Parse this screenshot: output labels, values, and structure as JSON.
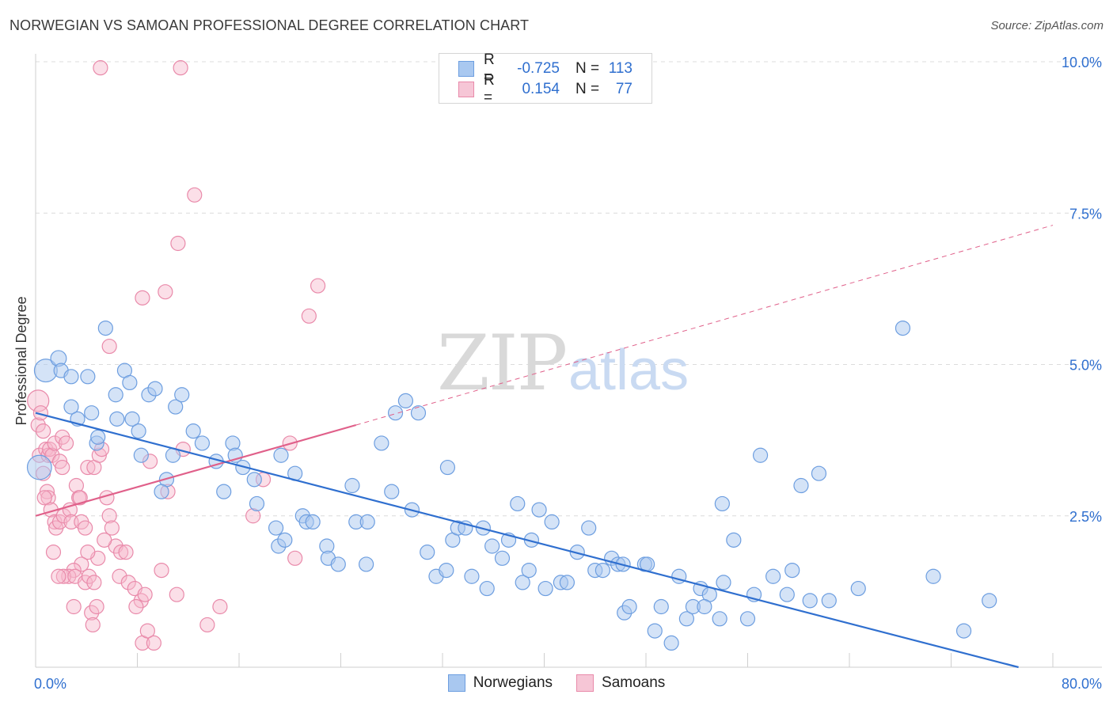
{
  "title": "NORWEGIAN VS SAMOAN PROFESSIONAL DEGREE CORRELATION CHART",
  "source": "Source: ZipAtlas.com",
  "watermark": {
    "zip": "ZIP",
    "atlas": "atlas"
  },
  "legend": {
    "rows": [
      {
        "r_label": "R =",
        "r_value": "-0.725",
        "n_label": "N =",
        "n_value": "113"
      },
      {
        "r_label": "R =",
        "r_value": "0.154",
        "n_label": "N =",
        "n_value": "77"
      }
    ]
  },
  "bottom_legend": [
    "Norwegians",
    "Samoans"
  ],
  "colors": {
    "blue_fill": "#a9c8f0",
    "blue_stroke": "#6d9ee0",
    "blue_line": "#2f6fcf",
    "pink_fill": "#f6b8cc",
    "pink_stroke": "#e98aaa",
    "pink_line": "#e0608a",
    "tick_text": "#2f6fcf"
  },
  "chart_data": {
    "type": "scatter",
    "title": "NORWEGIAN VS SAMOAN PROFESSIONAL DEGREE CORRELATION CHART",
    "xlabel": "",
    "ylabel": "Professional Degree",
    "xlim": [
      0,
      80
    ],
    "ylim": [
      0,
      10
    ],
    "x_tick_labels": [
      "0.0%",
      "80.0%"
    ],
    "y_ticks": [
      2.5,
      5.0,
      7.5,
      10.0
    ],
    "y_tick_labels": [
      "2.5%",
      "5.0%",
      "7.5%",
      "10.0%"
    ],
    "grid": true,
    "series": [
      {
        "name": "Norwegians",
        "r": -0.725,
        "n": 113,
        "trend": {
          "x": [
            0,
            77.3
          ],
          "y": [
            4.2,
            0.0
          ],
          "style": "solid"
        },
        "points": [
          [
            0.3,
            3.3,
            1.7
          ],
          [
            0.8,
            4.9,
            1.6
          ],
          [
            1.8,
            5.1,
            1.1
          ],
          [
            2.0,
            4.9,
            1
          ],
          [
            2.8,
            4.8,
            1
          ],
          [
            4.1,
            4.8,
            1
          ],
          [
            5.5,
            5.6,
            1
          ],
          [
            7.0,
            4.9,
            1
          ],
          [
            2.8,
            4.3,
            1
          ],
          [
            3.3,
            4.1,
            1
          ],
          [
            4.4,
            4.2,
            1
          ],
          [
            6.4,
            4.1,
            1
          ],
          [
            7.6,
            4.1,
            1
          ],
          [
            6.3,
            4.5,
            1
          ],
          [
            7.4,
            4.7,
            1
          ],
          [
            8.9,
            4.5,
            1
          ],
          [
            9.4,
            4.6,
            1
          ],
          [
            11.0,
            4.3,
            1
          ],
          [
            11.5,
            4.5,
            1
          ],
          [
            8.1,
            3.9,
            1
          ],
          [
            12.4,
            3.9,
            1
          ],
          [
            13.1,
            3.7,
            1
          ],
          [
            4.8,
            3.7,
            1
          ],
          [
            4.9,
            3.8,
            1
          ],
          [
            8.3,
            3.5,
            1
          ],
          [
            10.8,
            3.5,
            1
          ],
          [
            14.2,
            3.4,
            1
          ],
          [
            15.5,
            3.7,
            1
          ],
          [
            15.7,
            3.5,
            1
          ],
          [
            10.3,
            3.1,
            1
          ],
          [
            9.9,
            2.9,
            1
          ],
          [
            14.8,
            2.9,
            1
          ],
          [
            16.3,
            3.3,
            1
          ],
          [
            17.2,
            3.1,
            1
          ],
          [
            17.4,
            2.7,
            1
          ],
          [
            18.9,
            2.3,
            1
          ],
          [
            19.1,
            2.0,
            1
          ],
          [
            19.6,
            2.1,
            1
          ],
          [
            19.3,
            3.5,
            1
          ],
          [
            20.4,
            3.2,
            1
          ],
          [
            21.0,
            2.5,
            1
          ],
          [
            21.3,
            2.4,
            1
          ],
          [
            21.8,
            2.4,
            1
          ],
          [
            22.9,
            2.0,
            1
          ],
          [
            23.0,
            1.8,
            1
          ],
          [
            23.8,
            1.7,
            1
          ],
          [
            24.9,
            3.0,
            1
          ],
          [
            25.2,
            2.4,
            1
          ],
          [
            26.0,
            1.7,
            1
          ],
          [
            27.2,
            3.7,
            1
          ],
          [
            28.0,
            2.9,
            1
          ],
          [
            28.3,
            4.2,
            1
          ],
          [
            26.1,
            2.4,
            1
          ],
          [
            29.1,
            4.4,
            1
          ],
          [
            29.6,
            2.6,
            1
          ],
          [
            30.1,
            4.2,
            1
          ],
          [
            30.8,
            1.9,
            1
          ],
          [
            31.5,
            1.5,
            1
          ],
          [
            32.3,
            1.6,
            1
          ],
          [
            32.4,
            3.3,
            1
          ],
          [
            32.8,
            2.1,
            1
          ],
          [
            33.2,
            2.3,
            1
          ],
          [
            33.8,
            2.3,
            1
          ],
          [
            34.3,
            1.5,
            1
          ],
          [
            35.2,
            2.3,
            1
          ],
          [
            35.5,
            1.3,
            1
          ],
          [
            35.9,
            2.0,
            1
          ],
          [
            36.7,
            1.8,
            1
          ],
          [
            37.2,
            2.1,
            1
          ],
          [
            37.9,
            2.7,
            1
          ],
          [
            38.3,
            1.4,
            1
          ],
          [
            39.0,
            2.1,
            1
          ],
          [
            38.8,
            1.6,
            1
          ],
          [
            39.6,
            2.6,
            1
          ],
          [
            40.1,
            1.3,
            1
          ],
          [
            40.6,
            2.4,
            1
          ],
          [
            41.3,
            1.4,
            1
          ],
          [
            41.8,
            1.4,
            1
          ],
          [
            42.6,
            1.9,
            1
          ],
          [
            43.5,
            2.3,
            1
          ],
          [
            44.0,
            1.6,
            1
          ],
          [
            44.6,
            1.6,
            1
          ],
          [
            45.3,
            1.8,
            1
          ],
          [
            45.8,
            1.7,
            1
          ],
          [
            46.2,
            1.7,
            1
          ],
          [
            46.3,
            0.9,
            1
          ],
          [
            46.7,
            1.0,
            1
          ],
          [
            47.9,
            1.7,
            1
          ],
          [
            48.1,
            1.7,
            1
          ],
          [
            48.7,
            0.6,
            1
          ],
          [
            49.2,
            1.0,
            1
          ],
          [
            50.0,
            0.4,
            1
          ],
          [
            50.6,
            1.5,
            1
          ],
          [
            51.2,
            0.8,
            1
          ],
          [
            51.7,
            1.0,
            1
          ],
          [
            52.3,
            1.3,
            1
          ],
          [
            53.0,
            1.2,
            1
          ],
          [
            53.8,
            0.8,
            1
          ],
          [
            54.1,
            1.4,
            1
          ],
          [
            54.0,
            2.7,
            1
          ],
          [
            52.6,
            1.0,
            1
          ],
          [
            54.9,
            2.1,
            1
          ],
          [
            56.0,
            0.8,
            1
          ],
          [
            56.5,
            1.2,
            1
          ],
          [
            57.0,
            3.5,
            1
          ],
          [
            58.0,
            1.5,
            1
          ],
          [
            59.1,
            1.2,
            1
          ],
          [
            59.5,
            1.6,
            1
          ],
          [
            60.2,
            3.0,
            1
          ],
          [
            60.9,
            1.1,
            1
          ],
          [
            61.6,
            3.2,
            1
          ],
          [
            62.4,
            1.1,
            1
          ],
          [
            64.7,
            1.3,
            1
          ],
          [
            68.2,
            5.6,
            1
          ],
          [
            70.6,
            1.5,
            1
          ],
          [
            73.0,
            0.6,
            1
          ],
          [
            75.0,
            1.1,
            1
          ]
        ]
      },
      {
        "name": "Samoans",
        "r": 0.154,
        "n": 77,
        "trend_solid": {
          "x": [
            0,
            25.2
          ],
          "y": [
            2.5,
            4.0
          ]
        },
        "trend_dashed": {
          "x": [
            25.2,
            80
          ],
          "y": [
            4.0,
            7.3
          ]
        },
        "points": [
          [
            0.2,
            4.4,
            1.5
          ],
          [
            0.2,
            4.0,
            1
          ],
          [
            0.4,
            4.2,
            1
          ],
          [
            0.6,
            3.9,
            1
          ],
          [
            0.3,
            3.5,
            1
          ],
          [
            0.8,
            3.6,
            1
          ],
          [
            1.0,
            3.5,
            1
          ],
          [
            1.1,
            3.6,
            1
          ],
          [
            1.3,
            3.5,
            1
          ],
          [
            1.5,
            3.7,
            1
          ],
          [
            2.1,
            3.8,
            1
          ],
          [
            2.4,
            3.7,
            1
          ],
          [
            1.9,
            3.4,
            1
          ],
          [
            2.1,
            3.3,
            1
          ],
          [
            0.6,
            3.2,
            1
          ],
          [
            0.9,
            2.9,
            1
          ],
          [
            1.0,
            2.8,
            1
          ],
          [
            0.7,
            2.8,
            1
          ],
          [
            1.2,
            2.6,
            1
          ],
          [
            1.5,
            2.4,
            1
          ],
          [
            1.6,
            2.3,
            1
          ],
          [
            1.9,
            2.4,
            1
          ],
          [
            2.2,
            2.5,
            1
          ],
          [
            2.7,
            2.6,
            1
          ],
          [
            2.8,
            2.4,
            1
          ],
          [
            3.2,
            3.0,
            1
          ],
          [
            3.4,
            2.8,
            1
          ],
          [
            3.5,
            2.8,
            1
          ],
          [
            3.6,
            2.4,
            1
          ],
          [
            3.9,
            2.3,
            1
          ],
          [
            4.1,
            3.3,
            1
          ],
          [
            4.6,
            3.3,
            1
          ],
          [
            5.0,
            3.5,
            1
          ],
          [
            5.2,
            3.6,
            1
          ],
          [
            5.6,
            2.8,
            1
          ],
          [
            5.8,
            2.5,
            1
          ],
          [
            6.0,
            2.3,
            1
          ],
          [
            6.3,
            2.0,
            1
          ],
          [
            6.7,
            1.9,
            1
          ],
          [
            7.1,
            1.9,
            1
          ],
          [
            5.4,
            2.1,
            1
          ],
          [
            4.9,
            1.8,
            1
          ],
          [
            4.1,
            1.9,
            1
          ],
          [
            3.6,
            1.7,
            1
          ],
          [
            3.0,
            1.6,
            1
          ],
          [
            2.6,
            1.5,
            1
          ],
          [
            2.2,
            1.5,
            1
          ],
          [
            1.4,
            1.9,
            1
          ],
          [
            1.8,
            1.5,
            1
          ],
          [
            3.1,
            1.5,
            1
          ],
          [
            3.9,
            1.4,
            1
          ],
          [
            4.2,
            1.5,
            1
          ],
          [
            4.6,
            1.4,
            1
          ],
          [
            6.6,
            1.5,
            1
          ],
          [
            7.3,
            1.4,
            1
          ],
          [
            7.8,
            1.3,
            1
          ],
          [
            8.3,
            1.1,
            1
          ],
          [
            7.9,
            1.0,
            1
          ],
          [
            8.6,
            1.2,
            1
          ],
          [
            4.4,
            0.9,
            1
          ],
          [
            4.8,
            1.0,
            1
          ],
          [
            4.5,
            0.7,
            1
          ],
          [
            3.0,
            1.0,
            1
          ],
          [
            8.4,
            0.4,
            1
          ],
          [
            8.8,
            0.6,
            1
          ],
          [
            9.3,
            0.4,
            1
          ],
          [
            9.9,
            1.6,
            1
          ],
          [
            10.4,
            2.9,
            1
          ],
          [
            11.6,
            3.6,
            1
          ],
          [
            11.1,
            1.2,
            1
          ],
          [
            13.5,
            0.7,
            1
          ],
          [
            14.5,
            1.0,
            1
          ],
          [
            17.1,
            2.5,
            1
          ],
          [
            17.9,
            3.1,
            1
          ],
          [
            20.4,
            1.8,
            1
          ],
          [
            5.8,
            5.3,
            1
          ],
          [
            8.4,
            6.1,
            1
          ],
          [
            10.2,
            6.2,
            1
          ],
          [
            11.2,
            7.0,
            1
          ],
          [
            12.5,
            7.8,
            1
          ],
          [
            21.5,
            5.8,
            1
          ],
          [
            22.2,
            6.3,
            1
          ],
          [
            5.1,
            9.9,
            1
          ],
          [
            11.4,
            9.9,
            1
          ],
          [
            20.0,
            3.7,
            1
          ],
          [
            9.0,
            3.4,
            1
          ]
        ]
      }
    ]
  }
}
